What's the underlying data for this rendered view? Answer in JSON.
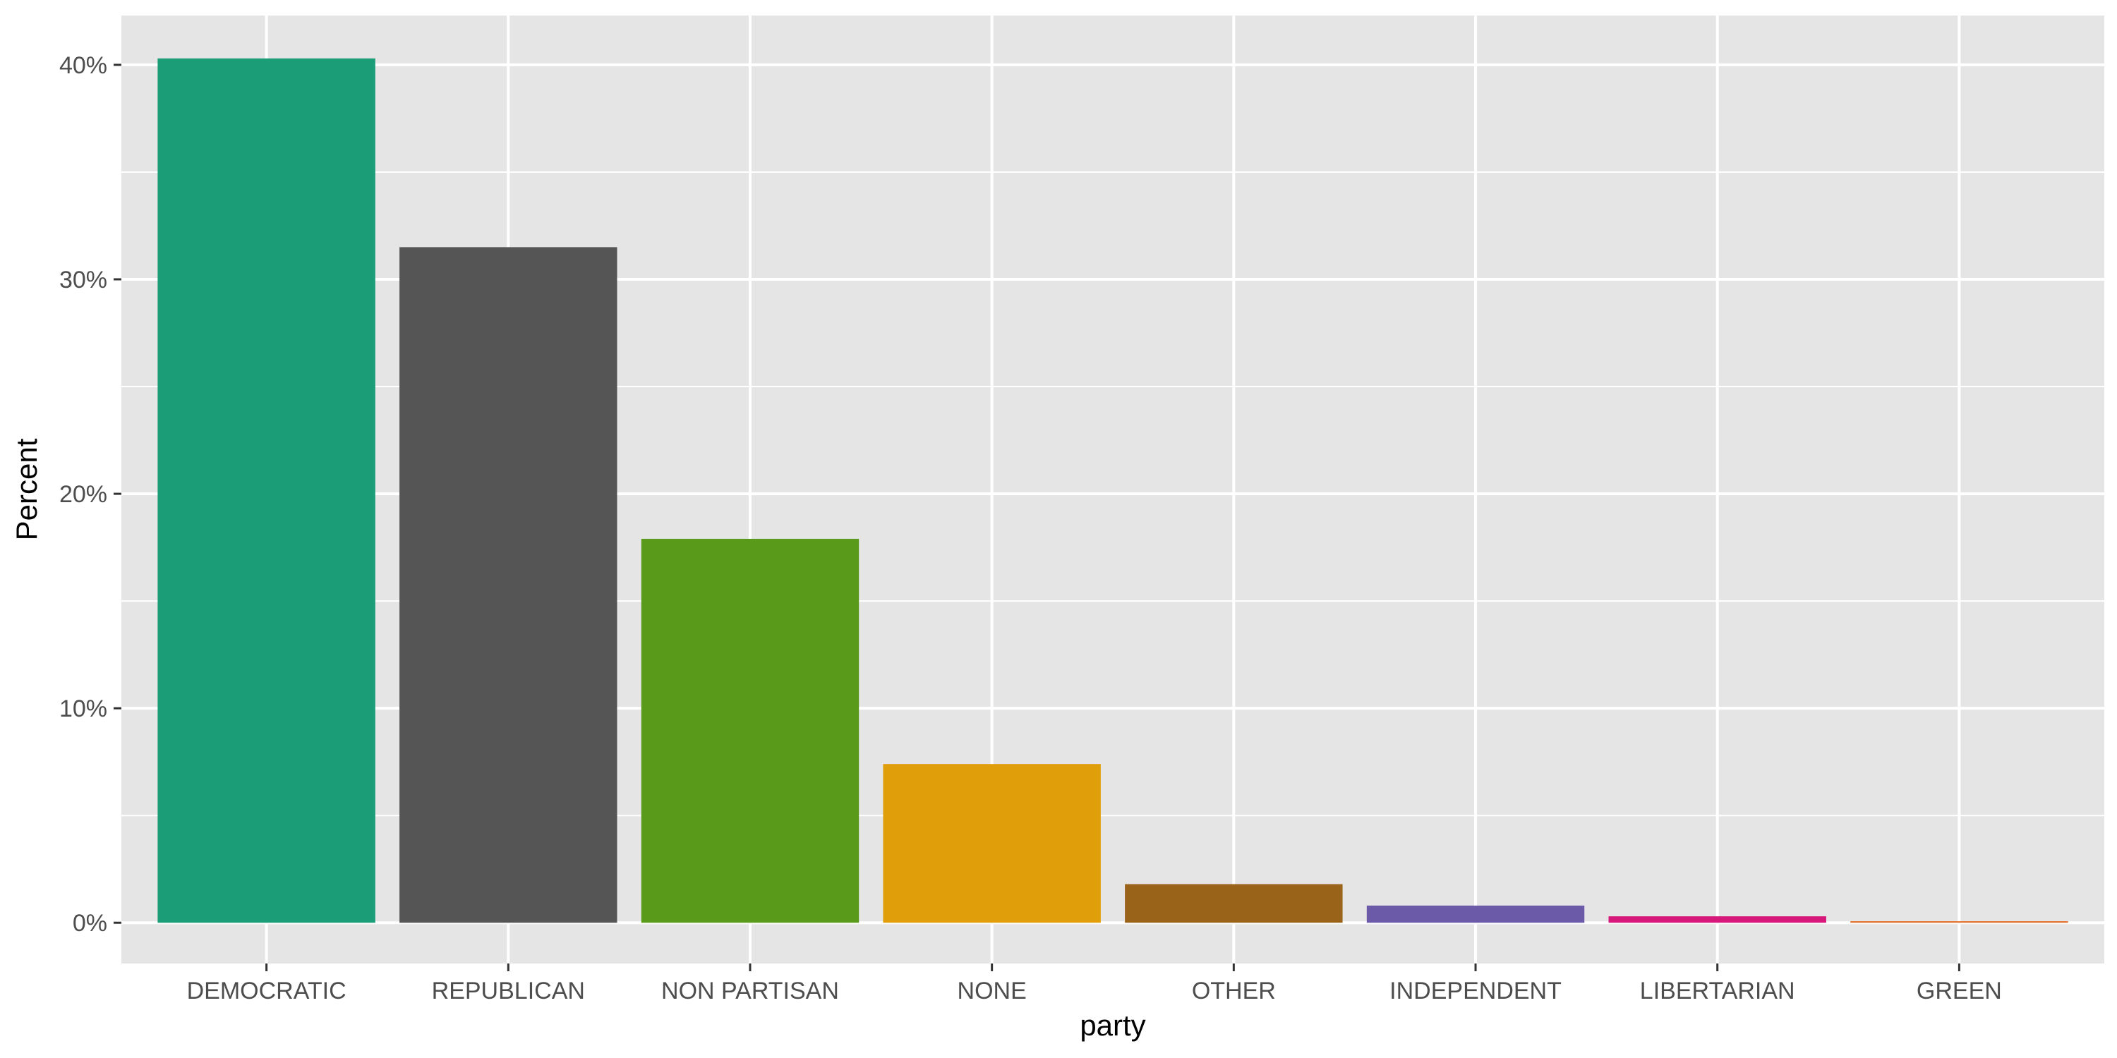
{
  "chart_data": {
    "type": "bar",
    "title": "",
    "xlabel": "party",
    "ylabel": "Percent",
    "categories": [
      "DEMOCRATIC",
      "REPUBLICAN",
      "NON PARTISAN",
      "NONE",
      "OTHER",
      "INDEPENDENT",
      "LIBERTARIAN",
      "GREEN"
    ],
    "values": [
      40.3,
      31.5,
      17.9,
      7.4,
      1.8,
      0.8,
      0.3,
      0.07
    ],
    "colors": [
      "#1b9e77",
      "#555555",
      "#5a9a1a",
      "#e09e0a",
      "#996419",
      "#6a5aa8",
      "#d6187a",
      "#e0702a"
    ],
    "y_ticks": [
      0,
      10,
      20,
      30,
      40
    ],
    "y_tick_labels": [
      "0%",
      "10%",
      "20%",
      "30%",
      "40%"
    ],
    "ylim": [
      -1.9,
      42.3
    ],
    "grid": true,
    "legend": "none",
    "panel_background": "#e5e5e5",
    "grid_color": "#ffffff"
  }
}
